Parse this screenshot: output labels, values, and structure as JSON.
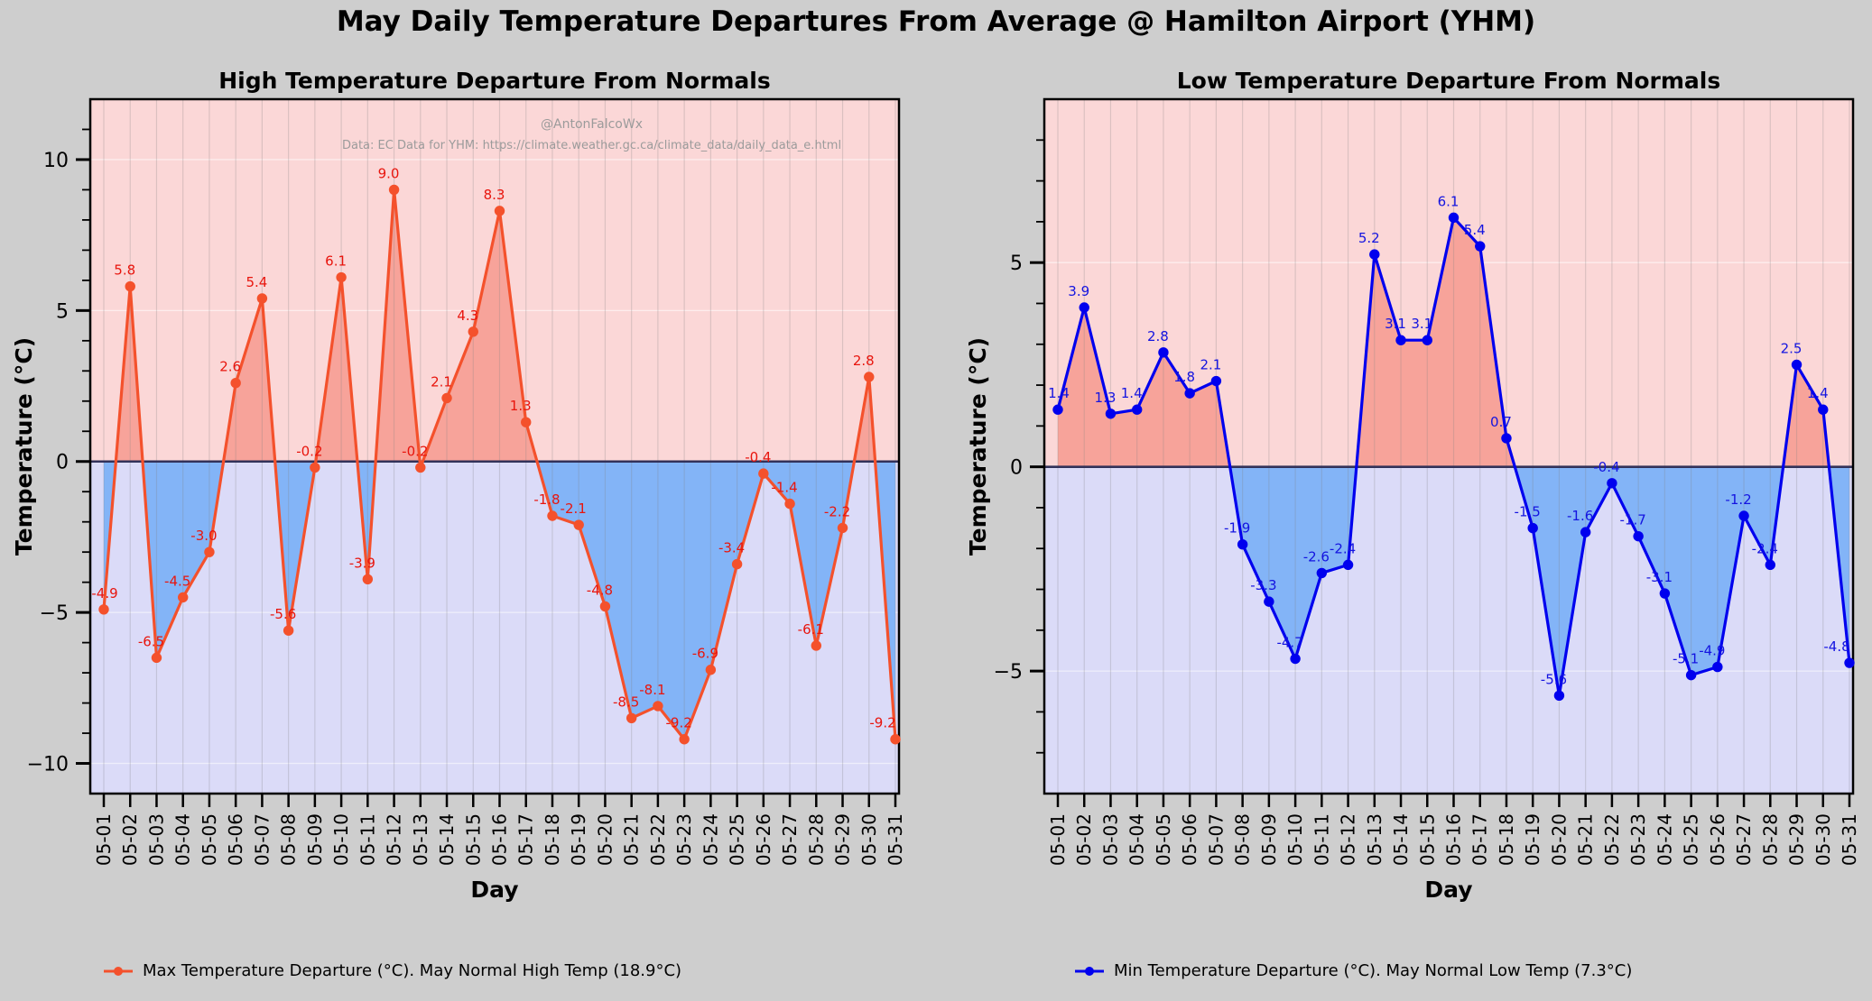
{
  "figure": {
    "title": "May Daily Temperature Departures From Average @ Hamilton Airport (YHM)",
    "watermark": {
      "line1": "@AntonFalcoWx",
      "line2": "Data: EC Data for YHM: https://climate.weather.gc.ca/climate_data/daily_data_e.html"
    },
    "background": "#cecece"
  },
  "colors": {
    "band_positive": "#fbd7d7",
    "band_negative": "#dbdbf8",
    "fill_positive": "#f7a39a",
    "fill_negative": "#83b4f7",
    "zero_line": "#32325a",
    "grid_vertical": "#808080",
    "grid_horizontal": "#ffffff",
    "axis": "#000000",
    "watermark_text": "#9b9b9b",
    "high_line": "#f4512c",
    "high_label": "#e8150d",
    "low_line": "#0000ee",
    "low_label": "#1414e0"
  },
  "chart_data": [
    {
      "type": "line",
      "title": "High Temperature Departure From Normals",
      "xlabel": "Day",
      "ylabel": "Temperature (°C)",
      "ylim": [
        -11,
        12
      ],
      "yticks": [
        10,
        5,
        0,
        -5,
        -10
      ],
      "grid": true,
      "legend_position": "bottom-left",
      "watermark": true,
      "categories": [
        "05-01",
        "05-02",
        "05-03",
        "05-04",
        "05-05",
        "05-06",
        "05-07",
        "05-08",
        "05-09",
        "05-10",
        "05-11",
        "05-12",
        "05-13",
        "05-14",
        "05-15",
        "05-16",
        "05-17",
        "05-18",
        "05-19",
        "05-20",
        "05-21",
        "05-22",
        "05-23",
        "05-24",
        "05-25",
        "05-26",
        "05-27",
        "05-28",
        "05-29",
        "05-30",
        "05-31"
      ],
      "series": [
        {
          "name": "Max Temperature Departure (°C)",
          "color_key": "high",
          "values": [
            -4.9,
            5.8,
            -6.5,
            -4.5,
            -3.0,
            2.6,
            5.4,
            -5.6,
            -0.2,
            6.1,
            -3.9,
            9.0,
            -0.2,
            2.1,
            4.3,
            8.3,
            1.3,
            -1.8,
            -2.1,
            -4.8,
            -8.5,
            -8.1,
            -9.2,
            -6.9,
            -3.4,
            -0.4,
            -1.4,
            -6.1,
            -2.2,
            2.8,
            -9.2
          ]
        }
      ],
      "legend": {
        "label": "Max Temperature Departure (°C).   May Normal High Temp (18.9°C)"
      }
    },
    {
      "type": "line",
      "title": "Low Temperature Departure From Normals",
      "xlabel": "Day",
      "ylabel": "Temperature (°C)",
      "ylim": [
        -8,
        9
      ],
      "yticks": [
        5,
        0,
        -5
      ],
      "grid": true,
      "legend_position": "bottom-left",
      "watermark": false,
      "categories": [
        "05-01",
        "05-02",
        "05-03",
        "05-04",
        "05-05",
        "05-06",
        "05-07",
        "05-08",
        "05-09",
        "05-10",
        "05-11",
        "05-12",
        "05-13",
        "05-14",
        "05-15",
        "05-16",
        "05-17",
        "05-18",
        "05-19",
        "05-20",
        "05-21",
        "05-22",
        "05-23",
        "05-24",
        "05-25",
        "05-26",
        "05-27",
        "05-28",
        "05-29",
        "05-30",
        "05-31"
      ],
      "series": [
        {
          "name": "Min Temperature Departure (°C)",
          "color_key": "low",
          "values": [
            1.4,
            3.9,
            1.3,
            1.4,
            2.8,
            1.8,
            2.1,
            -1.9,
            -3.3,
            -4.7,
            -2.6,
            -2.4,
            5.2,
            3.1,
            3.1,
            6.1,
            5.4,
            0.7,
            -1.5,
            -5.6,
            -1.6,
            -0.4,
            -1.7,
            -3.1,
            -5.1,
            -4.9,
            -1.2,
            -2.4,
            2.5,
            1.4,
            -4.8
          ]
        }
      ],
      "legend": {
        "label": "Min Temperature Departure (°C).   May Normal Low Temp (7.3°C)"
      }
    }
  ]
}
